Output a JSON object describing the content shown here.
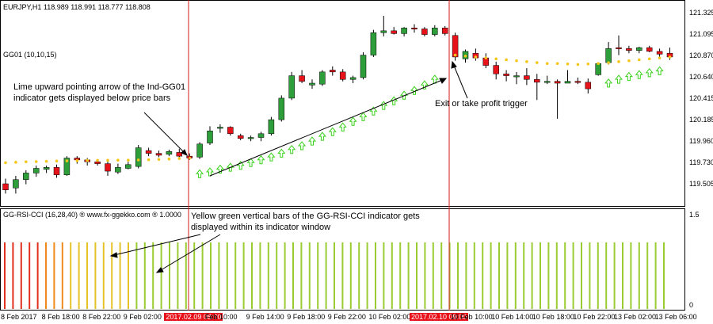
{
  "window": {
    "symbol_header": "EURJPY,H1  118.989 118.991 118.777 118.808",
    "indicator_main": "GG01 (10,10,15)",
    "indicator_sub": "GG-RSI-CCI (16,28,40)  ® www.fx-ggekko.com ®  1.0000"
  },
  "price_axis": [
    "121.325",
    "121.095",
    "120.870",
    "120.640",
    "120.415",
    "120.185",
    "119.960",
    "119.730",
    "119.505"
  ],
  "sub_axis": {
    "top": "1.5",
    "bottom": "0"
  },
  "time_axis": [
    {
      "label": "8 Feb 2017",
      "highlight": false
    },
    {
      "label": "8 Feb 18:00",
      "highlight": false
    },
    {
      "label": "8 Feb 22:00",
      "highlight": false
    },
    {
      "label": "9 Feb 02:00",
      "highlight": false
    },
    {
      "label": "2017.02.09 08:00",
      "highlight": true
    },
    {
      "label": "Feb 10:00",
      "highlight": false
    },
    {
      "label": "9 Feb 14:00",
      "highlight": false
    },
    {
      "label": "9 Feb 18:00",
      "highlight": false
    },
    {
      "label": "9 Feb 22:00",
      "highlight": false
    },
    {
      "label": "10 Feb 02:00",
      "highlight": false
    },
    {
      "label": "2017.02.10 09:00",
      "highlight": true
    },
    {
      "label": "10 Feb 10:00",
      "highlight": false
    },
    {
      "label": "10 Feb 14:00",
      "highlight": false
    },
    {
      "label": "10 Feb 18:00",
      "highlight": false
    },
    {
      "label": "10 Feb 22:00",
      "highlight": false
    },
    {
      "label": "13 Feb 02:00",
      "highlight": false
    },
    {
      "label": "13 Feb 06:00",
      "highlight": false
    }
  ],
  "annotations": {
    "arrow_note": "Lime upward pointing arrow of the Ind-GG01 indicator gets displayed below price bars",
    "exit_note": "Exit or take profit trigger",
    "bars_note": "Yellow green vertical bars of the GG-RSI-CCI indicator gets displayed within its indicator window"
  },
  "colors": {
    "bull": "#2e9e3a",
    "bear": "#e8121b",
    "dot": "#f5c518",
    "arrow": "#39d11a",
    "line": "#d11a1a"
  },
  "candles": [
    {
      "o": 119.505,
      "h": 119.56,
      "l": 119.4,
      "c": 119.44
    },
    {
      "o": 119.46,
      "h": 119.59,
      "l": 119.4,
      "c": 119.55
    },
    {
      "o": 119.55,
      "h": 119.65,
      "l": 119.5,
      "c": 119.62
    },
    {
      "o": 119.62,
      "h": 119.7,
      "l": 119.58,
      "c": 119.67
    },
    {
      "o": 119.66,
      "h": 119.7,
      "l": 119.62,
      "c": 119.68
    },
    {
      "o": 119.68,
      "h": 119.71,
      "l": 119.57,
      "c": 119.6
    },
    {
      "o": 119.6,
      "h": 119.8,
      "l": 119.59,
      "c": 119.78
    },
    {
      "o": 119.78,
      "h": 119.8,
      "l": 119.72,
      "c": 119.76
    },
    {
      "o": 119.76,
      "h": 119.78,
      "l": 119.7,
      "c": 119.74
    },
    {
      "o": 119.74,
      "h": 119.76,
      "l": 119.7,
      "c": 119.72
    },
    {
      "o": 119.72,
      "h": 119.76,
      "l": 119.59,
      "c": 119.64
    },
    {
      "o": 119.63,
      "h": 119.72,
      "l": 119.61,
      "c": 119.68
    },
    {
      "o": 119.67,
      "h": 119.74,
      "l": 119.66,
      "c": 119.71
    },
    {
      "o": 119.69,
      "h": 119.92,
      "l": 119.67,
      "c": 119.89
    },
    {
      "o": 119.86,
      "h": 119.89,
      "l": 119.8,
      "c": 119.83
    },
    {
      "o": 119.83,
      "h": 119.86,
      "l": 119.79,
      "c": 119.81
    },
    {
      "o": 119.82,
      "h": 119.87,
      "l": 119.8,
      "c": 119.85
    },
    {
      "o": 119.84,
      "h": 119.88,
      "l": 119.78,
      "c": 119.8
    },
    {
      "o": 119.8,
      "h": 119.83,
      "l": 119.76,
      "c": 119.78
    },
    {
      "o": 119.79,
      "h": 119.95,
      "l": 119.77,
      "c": 119.93
    },
    {
      "o": 119.94,
      "h": 120.12,
      "l": 119.92,
      "c": 120.07
    },
    {
      "o": 120.1,
      "h": 120.14,
      "l": 120.05,
      "c": 120.11
    },
    {
      "o": 120.11,
      "h": 120.12,
      "l": 120.02,
      "c": 120.04
    },
    {
      "o": 120.02,
      "h": 120.04,
      "l": 119.97,
      "c": 119.99
    },
    {
      "o": 119.99,
      "h": 120.02,
      "l": 119.96,
      "c": 120.0
    },
    {
      "o": 120.0,
      "h": 120.06,
      "l": 119.96,
      "c": 120.04
    },
    {
      "o": 120.04,
      "h": 120.22,
      "l": 120.02,
      "c": 120.19
    },
    {
      "o": 120.19,
      "h": 120.45,
      "l": 120.17,
      "c": 120.42
    },
    {
      "o": 120.42,
      "h": 120.7,
      "l": 120.4,
      "c": 120.66
    },
    {
      "o": 120.66,
      "h": 120.72,
      "l": 120.58,
      "c": 120.6
    },
    {
      "o": 120.56,
      "h": 120.62,
      "l": 120.52,
      "c": 120.58
    },
    {
      "o": 120.57,
      "h": 120.72,
      "l": 120.55,
      "c": 120.7
    },
    {
      "o": 120.72,
      "h": 120.76,
      "l": 120.66,
      "c": 120.7
    },
    {
      "o": 120.7,
      "h": 120.73,
      "l": 120.6,
      "c": 120.62
    },
    {
      "o": 120.62,
      "h": 120.66,
      "l": 120.58,
      "c": 120.64
    },
    {
      "o": 120.64,
      "h": 120.91,
      "l": 120.62,
      "c": 120.88
    },
    {
      "o": 120.88,
      "h": 121.15,
      "l": 120.86,
      "c": 121.12
    },
    {
      "o": 121.12,
      "h": 121.3,
      "l": 121.08,
      "c": 121.14
    },
    {
      "o": 121.14,
      "h": 121.18,
      "l": 121.1,
      "c": 121.11
    },
    {
      "o": 121.11,
      "h": 121.18,
      "l": 121.08,
      "c": 121.17
    },
    {
      "o": 121.17,
      "h": 121.21,
      "l": 121.12,
      "c": 121.16
    },
    {
      "o": 121.16,
      "h": 121.18,
      "l": 121.08,
      "c": 121.1
    },
    {
      "o": 121.1,
      "h": 121.2,
      "l": 121.08,
      "c": 121.17
    },
    {
      "o": 121.17,
      "h": 121.19,
      "l": 121.09,
      "c": 121.11
    },
    {
      "o": 121.09,
      "h": 121.12,
      "l": 120.82,
      "c": 120.86
    },
    {
      "o": 120.84,
      "h": 120.94,
      "l": 120.8,
      "c": 120.92
    },
    {
      "o": 120.9,
      "h": 120.95,
      "l": 120.82,
      "c": 120.85
    },
    {
      "o": 120.85,
      "h": 120.9,
      "l": 120.74,
      "c": 120.77
    },
    {
      "o": 120.77,
      "h": 120.81,
      "l": 120.62,
      "c": 120.68
    },
    {
      "o": 120.68,
      "h": 120.72,
      "l": 120.6,
      "c": 120.66
    },
    {
      "o": 120.66,
      "h": 120.7,
      "l": 120.57,
      "c": 120.66
    },
    {
      "o": 120.66,
      "h": 120.74,
      "l": 120.56,
      "c": 120.62
    },
    {
      "o": 120.62,
      "h": 120.68,
      "l": 120.4,
      "c": 120.59
    },
    {
      "o": 120.59,
      "h": 120.66,
      "l": 120.57,
      "c": 120.6
    },
    {
      "o": 120.6,
      "h": 120.62,
      "l": 120.2,
      "c": 120.58
    },
    {
      "o": 120.58,
      "h": 120.72,
      "l": 120.58,
      "c": 120.6
    },
    {
      "o": 120.6,
      "h": 120.64,
      "l": 120.57,
      "c": 120.59
    },
    {
      "o": 120.59,
      "h": 120.63,
      "l": 120.47,
      "c": 120.52
    },
    {
      "o": 120.67,
      "h": 120.8,
      "l": 120.66,
      "c": 120.79
    },
    {
      "o": 120.8,
      "h": 121.02,
      "l": 120.78,
      "c": 120.95
    },
    {
      "o": 120.96,
      "h": 121.09,
      "l": 120.88,
      "c": 120.95
    },
    {
      "o": 120.95,
      "h": 120.98,
      "l": 120.9,
      "c": 120.93
    },
    {
      "o": 120.93,
      "h": 120.97,
      "l": 120.9,
      "c": 120.96
    },
    {
      "o": 120.96,
      "h": 120.98,
      "l": 120.91,
      "c": 120.92
    },
    {
      "o": 120.92,
      "h": 120.95,
      "l": 120.85,
      "c": 120.89
    },
    {
      "o": 120.9,
      "h": 120.96,
      "l": 120.83,
      "c": 120.86
    }
  ],
  "dots": [
    119.73,
    119.735,
    119.74,
    119.742,
    119.745,
    119.748,
    119.75,
    119.752,
    119.754,
    119.755,
    119.756,
    119.757,
    119.758,
    119.76,
    119.762,
    119.765,
    119.77,
    119.775,
    119.78,
    null,
    null,
    null,
    null,
    null,
    null,
    null,
    null,
    null,
    null,
    null,
    null,
    null,
    null,
    null,
    null,
    null,
    null,
    null,
    null,
    null,
    null,
    null,
    null,
    null,
    120.88,
    120.87,
    120.86,
    120.85,
    120.84,
    120.83,
    120.82,
    120.81,
    120.8,
    120.79,
    120.79,
    120.785,
    120.78,
    120.785,
    120.79,
    120.8,
    120.81,
    120.82,
    120.83,
    120.84,
    120.85,
    120.86
  ],
  "arrows": [
    null,
    null,
    null,
    null,
    null,
    null,
    null,
    null,
    null,
    null,
    null,
    null,
    null,
    null,
    null,
    null,
    null,
    null,
    null,
    119.73,
    119.75,
    119.78,
    119.8,
    119.82,
    119.85,
    119.88,
    119.91,
    119.95,
    119.99,
    120.03,
    120.08,
    120.13,
    120.18,
    120.23,
    120.29,
    120.34,
    120.4,
    120.46,
    120.51,
    120.57,
    120.62,
    120.68,
    120.74,
    null,
    null,
    null,
    null,
    null,
    null,
    null,
    null,
    null,
    null,
    null,
    null,
    null,
    null,
    null,
    null,
    120.7,
    120.74,
    120.77,
    120.79,
    120.81,
    120.83
  ],
  "cci_bars": [
    "r",
    "r",
    "r",
    "r",
    "r",
    "o",
    "o",
    "o",
    "y",
    "y",
    "y",
    "y",
    "y",
    "y",
    "y",
    "y",
    "g",
    "g",
    "g",
    "g",
    "g",
    "g",
    "g",
    "g",
    "g",
    "g",
    "g",
    "g",
    "g",
    "g",
    "g",
    "g",
    "g",
    "g",
    "g",
    "g",
    "g",
    "g",
    "g",
    "g",
    "g",
    "g",
    "g",
    "g",
    "g",
    "g",
    "g",
    "g",
    "g",
    "g",
    "g",
    "g",
    "g",
    "g",
    "g",
    "g",
    "g",
    "g",
    "g",
    "g",
    "g",
    "g",
    "g",
    "g",
    "g",
    "g",
    "g",
    "g",
    "g",
    "g",
    "g",
    "g",
    "g",
    "g",
    "g",
    "g",
    "g",
    "g",
    "g",
    "g",
    "g"
  ]
}
